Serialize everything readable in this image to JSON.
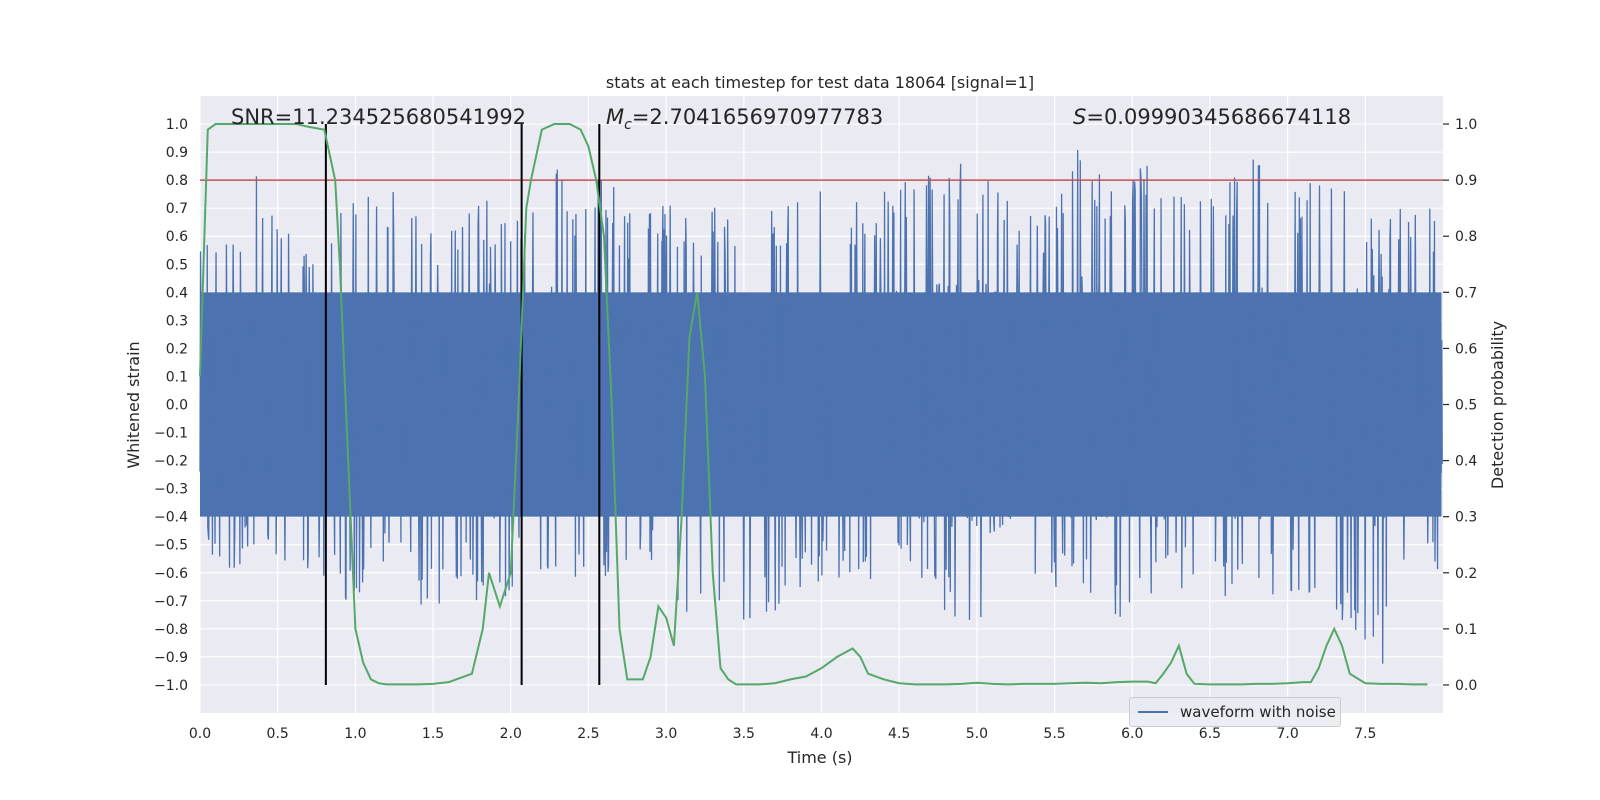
{
  "chart_data": {
    "type": "line",
    "title": "stats at each timestep for test data 18064 [signal=1]",
    "xlabel": "Time (s)",
    "ylabel_left": "Whitened strain",
    "ylabel_right": "Detection probability",
    "xlim": [
      0,
      8
    ],
    "ylim_left": [
      -1.1,
      1.1
    ],
    "ylim_right": [
      -0.05,
      1.05
    ],
    "x_ticks": [
      "0.0",
      "0.5",
      "1.0",
      "1.5",
      "2.0",
      "2.5",
      "3.0",
      "3.5",
      "4.0",
      "4.5",
      "5.0",
      "5.5",
      "6.0",
      "6.5",
      "7.0",
      "7.5"
    ],
    "y_left_ticks": [
      "1.0",
      "0.9",
      "0.8",
      "0.7",
      "0.6",
      "0.5",
      "0.4",
      "0.3",
      "0.2",
      "0.1",
      "0.0",
      "−0.1",
      "−0.2",
      "−0.3",
      "−0.4",
      "−0.5",
      "−0.6",
      "−0.7",
      "−0.8",
      "−0.9",
      "−1.0"
    ],
    "y_right_ticks": [
      "1.0",
      "0.9",
      "0.8",
      "0.7",
      "0.6",
      "0.5",
      "0.4",
      "0.3",
      "0.2",
      "0.1",
      "0.0"
    ],
    "annotations": {
      "snr": "SNR=11.234525680541992",
      "mc": "=2.7041656970977783",
      "s": "=0.09990345686674118",
      "mc_symbol": "M",
      "mc_sub": "c",
      "s_symbol": "S"
    },
    "threshold": {
      "value": 0.9,
      "color": "#c44e52"
    },
    "vertical_lines": [
      0.81,
      2.07,
      2.57
    ],
    "series": [
      {
        "name": "waveform with noise",
        "color": "#4c72b0",
        "envelope_peaks": [
          [
            0.0,
            0.62
          ],
          [
            0.05,
            0.62
          ],
          [
            0.1,
            0.68
          ],
          [
            0.2,
            0.62
          ],
          [
            0.35,
            0.85
          ],
          [
            0.5,
            0.66
          ],
          [
            0.65,
            0.62
          ],
          [
            0.75,
            0.66
          ],
          [
            0.85,
            0.75
          ],
          [
            1.0,
            0.78
          ],
          [
            1.2,
            0.77
          ],
          [
            1.35,
            0.75
          ],
          [
            1.5,
            0.65
          ],
          [
            1.6,
            0.66
          ],
          [
            1.7,
            0.75
          ],
          [
            1.85,
            0.75
          ],
          [
            1.95,
            0.7
          ],
          [
            2.05,
            0.76
          ],
          [
            2.2,
            0.73
          ],
          [
            2.33,
            0.99
          ],
          [
            2.4,
            0.78
          ],
          [
            2.6,
            0.84
          ],
          [
            2.8,
            0.65
          ],
          [
            3.0,
            0.72
          ],
          [
            3.2,
            0.71
          ],
          [
            3.5,
            0.69
          ],
          [
            3.8,
            0.72
          ],
          [
            4.0,
            0.78
          ],
          [
            4.3,
            0.71
          ],
          [
            4.5,
            0.83
          ],
          [
            4.9,
            0.89
          ],
          [
            5.2,
            0.75
          ],
          [
            5.5,
            0.71
          ],
          [
            5.7,
            0.98
          ],
          [
            5.85,
            0.82
          ],
          [
            6.0,
            0.8
          ],
          [
            6.1,
            0.92
          ],
          [
            6.4,
            0.76
          ],
          [
            6.5,
            0.83
          ],
          [
            6.8,
            0.88
          ],
          [
            7.0,
            0.78
          ],
          [
            7.3,
            0.82
          ],
          [
            7.6,
            0.7
          ],
          [
            7.9,
            0.71
          ]
        ],
        "envelope_troughs": [
          [
            0.0,
            -0.45
          ],
          [
            0.08,
            -0.58
          ],
          [
            0.12,
            -0.67
          ],
          [
            0.3,
            -0.55
          ],
          [
            0.5,
            -0.62
          ],
          [
            0.63,
            -0.72
          ],
          [
            0.7,
            -0.6
          ],
          [
            0.85,
            -0.62
          ],
          [
            1.0,
            -0.8
          ],
          [
            1.1,
            -0.55
          ],
          [
            1.3,
            -0.6
          ],
          [
            1.45,
            -0.8
          ],
          [
            1.55,
            -0.72
          ],
          [
            1.7,
            -0.6
          ],
          [
            1.87,
            -0.88
          ],
          [
            2.05,
            -0.6
          ],
          [
            2.2,
            -0.65
          ],
          [
            2.4,
            -0.68
          ],
          [
            2.8,
            -0.55
          ],
          [
            3.0,
            -0.6
          ],
          [
            3.15,
            -0.82
          ],
          [
            3.5,
            -0.78
          ],
          [
            3.8,
            -0.75
          ],
          [
            4.0,
            -0.62
          ],
          [
            4.3,
            -0.67
          ],
          [
            4.6,
            -0.6
          ],
          [
            5.05,
            -0.93
          ],
          [
            5.25,
            -0.86
          ],
          [
            5.6,
            -0.67
          ],
          [
            5.95,
            -0.78
          ],
          [
            6.2,
            -0.65
          ],
          [
            6.4,
            -0.68
          ],
          [
            6.7,
            -0.72
          ],
          [
            7.0,
            -0.68
          ],
          [
            7.3,
            -0.72
          ],
          [
            7.45,
            -0.87
          ],
          [
            7.6,
            -1.0
          ],
          [
            7.75,
            -0.65
          ],
          [
            7.95,
            -0.6
          ]
        ]
      },
      {
        "name": "detection probability",
        "color": "#55a868",
        "x": [
          0.0,
          0.05,
          0.1,
          0.2,
          0.3,
          0.5,
          0.62,
          0.7,
          0.8,
          0.87,
          0.9,
          1.0,
          1.05,
          1.1,
          1.15,
          1.2,
          1.3,
          1.4,
          1.5,
          1.6,
          1.75,
          1.82,
          1.86,
          1.93,
          2.0,
          2.05,
          2.1,
          2.13,
          2.2,
          2.28,
          2.38,
          2.45,
          2.5,
          2.55,
          2.6,
          2.65,
          2.7,
          2.75,
          2.8,
          2.85,
          2.9,
          2.95,
          3.0,
          3.05,
          3.1,
          3.15,
          3.2,
          3.25,
          3.3,
          3.35,
          3.4,
          3.45,
          3.5,
          3.55,
          3.6,
          3.7,
          3.8,
          3.9,
          4.0,
          4.1,
          4.2,
          4.25,
          4.3,
          4.4,
          4.5,
          4.6,
          4.7,
          4.8,
          4.9,
          5.0,
          5.1,
          5.2,
          5.3,
          5.4,
          5.5,
          5.6,
          5.7,
          5.8,
          5.9,
          6.0,
          6.1,
          6.15,
          6.2,
          6.25,
          6.3,
          6.35,
          6.4,
          6.5,
          6.6,
          6.7,
          6.8,
          6.9,
          7.0,
          7.1,
          7.15,
          7.2,
          7.25,
          7.3,
          7.35,
          7.4,
          7.5,
          7.6,
          7.7,
          7.8,
          7.9
        ],
        "values": [
          0.55,
          0.99,
          1.0,
          1.0,
          1.0,
          1.0,
          1.0,
          0.995,
          0.99,
          0.9,
          0.75,
          0.1,
          0.04,
          0.01,
          0.003,
          0.001,
          0.001,
          0.001,
          0.002,
          0.005,
          0.02,
          0.1,
          0.2,
          0.14,
          0.2,
          0.5,
          0.85,
          0.9,
          0.99,
          1.0,
          1.0,
          0.99,
          0.96,
          0.9,
          0.8,
          0.5,
          0.1,
          0.01,
          0.01,
          0.01,
          0.05,
          0.14,
          0.12,
          0.07,
          0.3,
          0.62,
          0.7,
          0.55,
          0.2,
          0.03,
          0.01,
          0.001,
          0.001,
          0.001,
          0.001,
          0.003,
          0.01,
          0.015,
          0.03,
          0.05,
          0.065,
          0.05,
          0.02,
          0.01,
          0.003,
          0.001,
          0.001,
          0.001,
          0.002,
          0.004,
          0.002,
          0.001,
          0.002,
          0.002,
          0.002,
          0.003,
          0.004,
          0.003,
          0.005,
          0.006,
          0.006,
          0.003,
          0.02,
          0.04,
          0.07,
          0.02,
          0.002,
          0.001,
          0.001,
          0.001,
          0.002,
          0.002,
          0.003,
          0.005,
          0.005,
          0.03,
          0.07,
          0.1,
          0.07,
          0.02,
          0.003,
          0.002,
          0.002,
          0.001,
          0.001
        ]
      }
    ],
    "legend": {
      "position": "lower-right",
      "entries": [
        "waveform with noise"
      ]
    },
    "grid": true,
    "colors": {
      "background": "#eaeaf2",
      "grid": "#ffffff",
      "vline": "#000000",
      "text": "#262626"
    }
  }
}
